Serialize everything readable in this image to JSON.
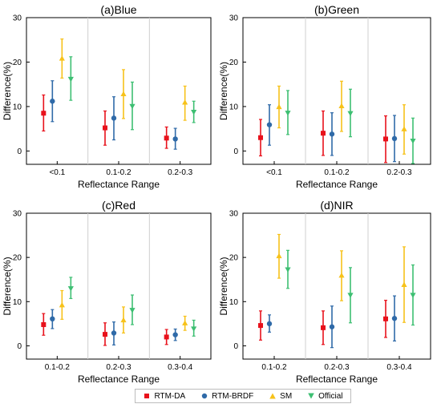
{
  "figure": {
    "legend": [
      {
        "name": "RTM-DA",
        "color": "#e8111b",
        "marker": "square"
      },
      {
        "name": "RTM-BRDF",
        "color": "#2f6aa8",
        "marker": "circle"
      },
      {
        "name": "SM",
        "color": "#f7c21a",
        "marker": "triangle-up"
      },
      {
        "name": "Official",
        "color": "#3dbf72",
        "marker": "triangle-down"
      }
    ]
  },
  "chart_data": [
    {
      "type": "scatter",
      "title": "(a)Blue",
      "xlabel": "Reflectance Range",
      "ylabel": "Difference(%)",
      "ylim": [
        -3,
        30
      ],
      "yticks": [
        0,
        10,
        20,
        30
      ],
      "categories": [
        "<0.1",
        "0.1-0.2",
        "0.2-0.3"
      ],
      "series": [
        {
          "name": "RTM-DA",
          "values": [
            8.5,
            5.2,
            2.9
          ],
          "err_low": [
            4.5,
            1.3,
            0.6
          ],
          "err_high": [
            12.6,
            9.0,
            5.4
          ]
        },
        {
          "name": "RTM-BRDF",
          "values": [
            11.2,
            7.4,
            2.7
          ],
          "err_low": [
            6.6,
            2.5,
            0.4
          ],
          "err_high": [
            15.8,
            12.2,
            5.1
          ]
        },
        {
          "name": "SM",
          "values": [
            20.8,
            12.8,
            10.9
          ],
          "err_low": [
            16.4,
            7.3,
            6.9
          ],
          "err_high": [
            25.2,
            18.3,
            14.6
          ]
        },
        {
          "name": "Official",
          "values": [
            16.2,
            10.1,
            8.8
          ],
          "err_low": [
            11.4,
            4.8,
            6.4
          ],
          "err_high": [
            21.2,
            15.5,
            11.2
          ]
        }
      ]
    },
    {
      "type": "scatter",
      "title": "(b)Green",
      "xlabel": "Reflectance Range",
      "ylabel": "Difference(%)",
      "ylim": [
        -3,
        30
      ],
      "yticks": [
        0,
        10,
        20,
        30
      ],
      "categories": [
        "<0.1",
        "0.1-0.2",
        "0.2-0.3"
      ],
      "series": [
        {
          "name": "RTM-DA",
          "values": [
            3.0,
            4.0,
            2.7
          ],
          "err_low": [
            -1.1,
            -1.0,
            -2.6
          ],
          "err_high": [
            7.1,
            9.0,
            7.9
          ]
        },
        {
          "name": "RTM-BRDF",
          "values": [
            5.9,
            3.8,
            2.8
          ],
          "err_low": [
            1.3,
            -1.0,
            -2.4
          ],
          "err_high": [
            10.4,
            8.6,
            8.0
          ]
        },
        {
          "name": "SM",
          "values": [
            9.9,
            10.1,
            4.9
          ],
          "err_low": [
            5.2,
            4.4,
            -0.7
          ],
          "err_high": [
            14.6,
            15.7,
            10.4
          ]
        },
        {
          "name": "Official",
          "values": [
            8.6,
            8.5,
            2.3
          ],
          "err_low": [
            3.7,
            3.2,
            -2.8
          ],
          "err_high": [
            13.6,
            13.9,
            7.4
          ]
        }
      ]
    },
    {
      "type": "scatter",
      "title": "(c)Red",
      "xlabel": "Reflectance Range",
      "ylabel": "Difference(%)",
      "ylim": [
        -3,
        30
      ],
      "yticks": [
        0,
        10,
        20,
        30
      ],
      "categories": [
        "0.1-0.2",
        "0.2-0.3",
        "0.3-0.4"
      ],
      "series": [
        {
          "name": "RTM-DA",
          "values": [
            4.8,
            2.6,
            2.0
          ],
          "err_low": [
            2.4,
            0.1,
            0.3
          ],
          "err_high": [
            7.3,
            5.2,
            3.7
          ]
        },
        {
          "name": "RTM-BRDF",
          "values": [
            6.1,
            2.9,
            2.5
          ],
          "err_low": [
            3.9,
            0.2,
            1.2
          ],
          "err_high": [
            8.2,
            5.4,
            3.8
          ]
        },
        {
          "name": "SM",
          "values": [
            9.2,
            5.8,
            5.1
          ],
          "err_low": [
            6.0,
            2.9,
            3.5
          ],
          "err_high": [
            12.5,
            8.8,
            6.7
          ]
        },
        {
          "name": "Official",
          "values": [
            13.0,
            8.1,
            3.9
          ],
          "err_low": [
            10.7,
            4.8,
            2.2
          ],
          "err_high": [
            15.5,
            11.5,
            5.8
          ]
        }
      ]
    },
    {
      "type": "scatter",
      "title": "(d)NIR",
      "xlabel": "Reflectance Range",
      "ylabel": "Difference(%)",
      "ylim": [
        -3,
        30
      ],
      "yticks": [
        0,
        10,
        20,
        30
      ],
      "categories": [
        "0.1-0.2",
        "0.2-0.3",
        "0.3-0.4"
      ],
      "series": [
        {
          "name": "RTM-DA",
          "values": [
            4.6,
            4.1,
            6.1
          ],
          "err_low": [
            1.3,
            0.3,
            1.9
          ],
          "err_high": [
            7.9,
            7.9,
            10.3
          ]
        },
        {
          "name": "RTM-BRDF",
          "values": [
            5.0,
            4.3,
            6.2
          ],
          "err_low": [
            3.1,
            -0.4,
            1.1
          ],
          "err_high": [
            7.0,
            9.0,
            11.3
          ]
        },
        {
          "name": "SM",
          "values": [
            20.3,
            15.9,
            13.8
          ],
          "err_low": [
            15.3,
            10.2,
            5.3
          ],
          "err_high": [
            25.2,
            21.5,
            22.4
          ]
        },
        {
          "name": "Official",
          "values": [
            17.3,
            11.5,
            11.5
          ],
          "err_low": [
            13.0,
            5.2,
            4.7
          ],
          "err_high": [
            21.6,
            17.7,
            18.3
          ]
        }
      ]
    }
  ]
}
